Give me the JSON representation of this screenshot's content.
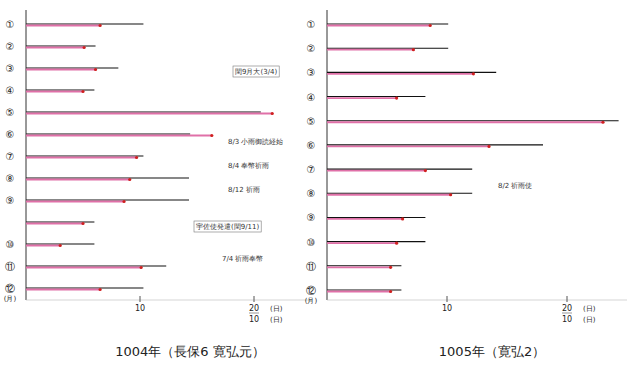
{
  "chart_data": [
    {
      "type": "bar",
      "orientation": "horizontal",
      "title": "1004年（長保6 寛弘元）",
      "categories": [
        "①",
        "②",
        "③",
        "④",
        "⑤",
        "⑥",
        "⑦",
        "⑧",
        "⑨",
        null,
        "⑩",
        "⑪",
        "⑫"
      ],
      "ylabel": "(月)",
      "xlabel": "(日)",
      "xlim": [
        0,
        25
      ],
      "xticks": [
        10,
        20
      ],
      "secondary_xticks": [
        {
          "value": 20,
          "label": "10"
        }
      ],
      "series": [
        {
          "color": "#111111",
          "values": [
            10.3,
            6.1,
            8.1,
            6.0,
            20.6,
            14.4,
            10.3,
            14.3,
            14.3,
            6.0,
            6.0,
            12.3,
            10.3
          ]
        },
        {
          "color": "#e070a8",
          "marker": "dot",
          "values": [
            6.5,
            5.1,
            6.1,
            5.0,
            21.6,
            16.3,
            9.7,
            9.1,
            8.6,
            5.0,
            3.0,
            10.1,
            6.5
          ]
        }
      ],
      "annotations": [
        "閏9月大(3/4)",
        "8/3 小雨御読経始",
        "8/4 奉幣祈雨",
        "8/12 祈雨",
        "宇佐使発遣(閏9/11)",
        "7/4 祈雨奉幣"
      ]
    },
    {
      "type": "bar",
      "orientation": "horizontal",
      "title": "1005年（寛弘2）",
      "categories": [
        "①",
        "②",
        "③",
        "④",
        "⑤",
        "⑥",
        "⑦",
        "⑧",
        "⑨",
        "⑩",
        "⑪",
        "⑫"
      ],
      "ylabel": "(月)",
      "xlabel": "(日)",
      "xlim": [
        0,
        25
      ],
      "xticks": [
        10,
        20
      ],
      "secondary_xticks": [
        {
          "value": 20,
          "label": "10"
        }
      ],
      "series": [
        {
          "color": "#111111",
          "values": [
            10.1,
            10.1,
            14.1,
            8.2,
            24.3,
            18.0,
            12.1,
            12.1,
            8.2,
            8.2,
            6.2,
            6.2
          ]
        },
        {
          "color": "#e070a8",
          "marker": "dot",
          "values": [
            8.6,
            7.2,
            12.2,
            5.8,
            23.0,
            13.5,
            8.2,
            10.3,
            6.3,
            5.8,
            5.3,
            5.3
          ]
        }
      ],
      "annotations": [
        "8/2 祈雨使"
      ]
    }
  ]
}
